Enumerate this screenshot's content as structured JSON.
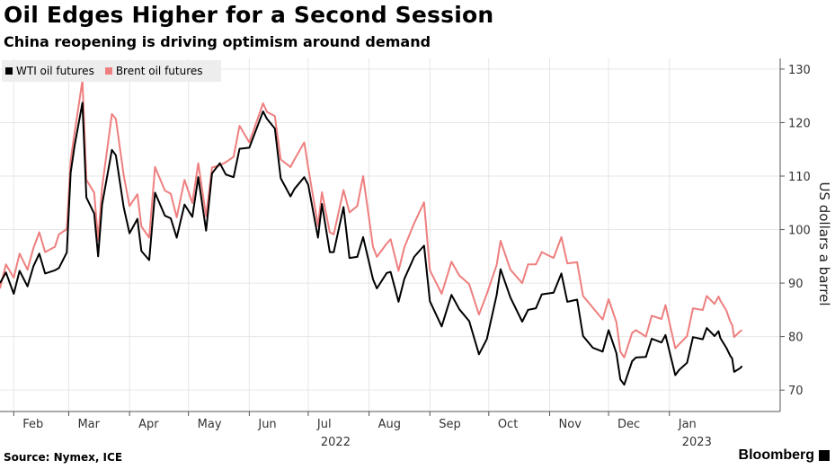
{
  "header": {
    "title": "Oil Edges Higher for a Second Session",
    "subtitle": "China reopening is driving optimism around demand"
  },
  "footer": {
    "source": "Source: Nymex, ICE",
    "brand": "Bloomberg"
  },
  "colors": {
    "wti": "#000000",
    "brent": "#ee7f7f",
    "grid": "#e6e6e6",
    "legend_bg": "#ededed"
  },
  "chart_data": {
    "type": "line",
    "title": "Oil Edges Higher for a Second Session",
    "subtitle": "China reopening is driving optimism around demand",
    "ylabel": "US dollars a barrel",
    "ylim": [
      66,
      132
    ],
    "yticks": [
      70,
      80,
      90,
      100,
      110,
      120,
      130
    ],
    "y_axis_side": "right",
    "xlim": [
      "2022-01-25",
      "2023-01-31"
    ],
    "xticks": [
      {
        "date": "2022-02-01",
        "label": "Feb"
      },
      {
        "date": "2022-03-01",
        "label": "Mar"
      },
      {
        "date": "2022-04-01",
        "label": "Apr"
      },
      {
        "date": "2022-05-01",
        "label": "May"
      },
      {
        "date": "2022-06-01",
        "label": "Jun"
      },
      {
        "date": "2022-07-01",
        "label": "Jul",
        "sublabel": "2022"
      },
      {
        "date": "2022-08-01",
        "label": "Aug"
      },
      {
        "date": "2022-09-01",
        "label": "Sep"
      },
      {
        "date": "2022-10-01",
        "label": "Oct"
      },
      {
        "date": "2022-11-01",
        "label": "Nov"
      },
      {
        "date": "2022-12-01",
        "label": "Dec"
      },
      {
        "date": "2023-01-01",
        "label": "Jan",
        "sublabel": "2023"
      }
    ],
    "grid": true,
    "legend_position": "top-left",
    "series": [
      {
        "name": "WTI oil futures",
        "color": "#000000",
        "points": [
          [
            "2022-01-25",
            90
          ],
          [
            "2022-01-28",
            92
          ],
          [
            "2022-02-01",
            88
          ],
          [
            "2022-02-04",
            92.3
          ],
          [
            "2022-02-08",
            89.4
          ],
          [
            "2022-02-11",
            93.1
          ],
          [
            "2022-02-14",
            95.5
          ],
          [
            "2022-02-17",
            91.8
          ],
          [
            "2022-02-22",
            92.4
          ],
          [
            "2022-02-24",
            92.8
          ],
          [
            "2022-02-28",
            95.7
          ],
          [
            "2022-03-02",
            110.6
          ],
          [
            "2022-03-04",
            115.7
          ],
          [
            "2022-03-08",
            123.7
          ],
          [
            "2022-03-10",
            106
          ],
          [
            "2022-03-14",
            103
          ],
          [
            "2022-03-16",
            95
          ],
          [
            "2022-03-18",
            104.7
          ],
          [
            "2022-03-23",
            114.9
          ],
          [
            "2022-03-25",
            113.9
          ],
          [
            "2022-03-29",
            104.2
          ],
          [
            "2022-04-01",
            99.3
          ],
          [
            "2022-04-05",
            102
          ],
          [
            "2022-04-07",
            96
          ],
          [
            "2022-04-11",
            94.3
          ],
          [
            "2022-04-14",
            106.9
          ],
          [
            "2022-04-19",
            102.6
          ],
          [
            "2022-04-22",
            102.1
          ],
          [
            "2022-04-25",
            98.5
          ],
          [
            "2022-04-29",
            104.7
          ],
          [
            "2022-05-03",
            102.4
          ],
          [
            "2022-05-06",
            109.8
          ],
          [
            "2022-05-10",
            99.8
          ],
          [
            "2022-05-13",
            110.5
          ],
          [
            "2022-05-17",
            112.4
          ],
          [
            "2022-05-20",
            110.3
          ],
          [
            "2022-05-24",
            109.8
          ],
          [
            "2022-05-27",
            115.1
          ],
          [
            "2022-06-01",
            115.3
          ],
          [
            "2022-06-08",
            122.1
          ],
          [
            "2022-06-10",
            120.7
          ],
          [
            "2022-06-14",
            118.9
          ],
          [
            "2022-06-17",
            109.6
          ],
          [
            "2022-06-22",
            106.2
          ],
          [
            "2022-06-24",
            107.6
          ],
          [
            "2022-06-29",
            109.8
          ],
          [
            "2022-07-01",
            108.4
          ],
          [
            "2022-07-06",
            98.5
          ],
          [
            "2022-07-08",
            104.8
          ],
          [
            "2022-07-12",
            95.8
          ],
          [
            "2022-07-14",
            95.8
          ],
          [
            "2022-07-19",
            104.2
          ],
          [
            "2022-07-22",
            94.7
          ],
          [
            "2022-07-26",
            94.9
          ],
          [
            "2022-07-29",
            98.6
          ],
          [
            "2022-08-03",
            90.7
          ],
          [
            "2022-08-05",
            89
          ],
          [
            "2022-08-10",
            91.9
          ],
          [
            "2022-08-12",
            92.1
          ],
          [
            "2022-08-16",
            86.5
          ],
          [
            "2022-08-19",
            90.8
          ],
          [
            "2022-08-24",
            94.9
          ],
          [
            "2022-08-29",
            97
          ],
          [
            "2022-09-01",
            86.6
          ],
          [
            "2022-09-07",
            81.9
          ],
          [
            "2022-09-12",
            87.8
          ],
          [
            "2022-09-16",
            85.1
          ],
          [
            "2022-09-21",
            82.9
          ],
          [
            "2022-09-26",
            76.7
          ],
          [
            "2022-09-30",
            79.5
          ],
          [
            "2022-10-05",
            87.8
          ],
          [
            "2022-10-07",
            92.6
          ],
          [
            "2022-10-12",
            87.3
          ],
          [
            "2022-10-18",
            82.8
          ],
          [
            "2022-10-21",
            85
          ],
          [
            "2022-10-25",
            85.3
          ],
          [
            "2022-10-28",
            87.9
          ],
          [
            "2022-11-03",
            88.2
          ],
          [
            "2022-11-07",
            91.8
          ],
          [
            "2022-11-10",
            86.5
          ],
          [
            "2022-11-15",
            86.9
          ],
          [
            "2022-11-18",
            80.1
          ],
          [
            "2022-11-23",
            77.9
          ],
          [
            "2022-11-28",
            77.2
          ],
          [
            "2022-12-01",
            81.2
          ],
          [
            "2022-12-05",
            76.9
          ],
          [
            "2022-12-07",
            72
          ],
          [
            "2022-12-09",
            71
          ],
          [
            "2022-12-13",
            75.4
          ],
          [
            "2022-12-15",
            76.1
          ],
          [
            "2022-12-20",
            76.2
          ],
          [
            "2022-12-23",
            79.6
          ],
          [
            "2022-12-28",
            78.9
          ],
          [
            "2022-12-30",
            80.3
          ],
          [
            "2023-01-04",
            72.8
          ],
          [
            "2023-01-06",
            73.8
          ],
          [
            "2023-01-10",
            75.1
          ],
          [
            "2023-01-13",
            79.9
          ],
          [
            "2023-01-18",
            79.5
          ],
          [
            "2023-01-20",
            81.6
          ],
          [
            "2023-01-24",
            80.1
          ],
          [
            "2023-01-26",
            81
          ],
          [
            "2023-01-27",
            79.7
          ],
          [
            "2023-01-30",
            77.9
          ],
          [
            "2023-02-01",
            76.4
          ],
          [
            "2023-02-02",
            75.9
          ],
          [
            "2023-02-03",
            73.4
          ],
          [
            "2023-02-06",
            74.1
          ],
          [
            "2023-02-07",
            74.5
          ]
        ]
      },
      {
        "name": "Brent oil futures",
        "color": "#ee7f7f",
        "points": [
          [
            "2022-01-25",
            89
          ],
          [
            "2022-01-28",
            93.5
          ],
          [
            "2022-02-01",
            91
          ],
          [
            "2022-02-04",
            95.5
          ],
          [
            "2022-02-08",
            92.5
          ],
          [
            "2022-02-11",
            96.5
          ],
          [
            "2022-02-14",
            99.5
          ],
          [
            "2022-02-17",
            95.8
          ],
          [
            "2022-02-22",
            96.8
          ],
          [
            "2022-02-24",
            99.1
          ],
          [
            "2022-02-28",
            100.1
          ],
          [
            "2022-03-02",
            112.9
          ],
          [
            "2022-03-04",
            118.1
          ],
          [
            "2022-03-08",
            127.9
          ],
          [
            "2022-03-10",
            109.3
          ],
          [
            "2022-03-14",
            106.9
          ],
          [
            "2022-03-16",
            98
          ],
          [
            "2022-03-18",
            107.9
          ],
          [
            "2022-03-23",
            121.6
          ],
          [
            "2022-03-25",
            120.7
          ],
          [
            "2022-03-29",
            110.2
          ],
          [
            "2022-04-01",
            104.4
          ],
          [
            "2022-04-05",
            106.6
          ],
          [
            "2022-04-07",
            100.6
          ],
          [
            "2022-04-11",
            98.5
          ],
          [
            "2022-04-14",
            111.7
          ],
          [
            "2022-04-19",
            107.3
          ],
          [
            "2022-04-22",
            106.7
          ],
          [
            "2022-04-25",
            102.3
          ],
          [
            "2022-04-29",
            109.3
          ],
          [
            "2022-05-03",
            104.97
          ],
          [
            "2022-05-06",
            112.4
          ],
          [
            "2022-05-10",
            102.5
          ],
          [
            "2022-05-13",
            111.6
          ],
          [
            "2022-05-17",
            112
          ],
          [
            "2022-05-20",
            112.6
          ],
          [
            "2022-05-24",
            113.6
          ],
          [
            "2022-05-27",
            119.4
          ],
          [
            "2022-06-01",
            116.3
          ],
          [
            "2022-06-08",
            123.6
          ],
          [
            "2022-06-10",
            122
          ],
          [
            "2022-06-14",
            121.2
          ],
          [
            "2022-06-17",
            113.1
          ],
          [
            "2022-06-22",
            111.7
          ],
          [
            "2022-06-24",
            113.1
          ],
          [
            "2022-06-29",
            116.3
          ],
          [
            "2022-07-01",
            111.6
          ],
          [
            "2022-07-06",
            100.7
          ],
          [
            "2022-07-08",
            107
          ],
          [
            "2022-07-12",
            99.5
          ],
          [
            "2022-07-14",
            99.1
          ],
          [
            "2022-07-19",
            107.4
          ],
          [
            "2022-07-22",
            103.2
          ],
          [
            "2022-07-26",
            104.4
          ],
          [
            "2022-07-29",
            110
          ],
          [
            "2022-08-03",
            96.8
          ],
          [
            "2022-08-05",
            94.9
          ],
          [
            "2022-08-10",
            97.4
          ],
          [
            "2022-08-12",
            98.2
          ],
          [
            "2022-08-16",
            92.3
          ],
          [
            "2022-08-19",
            96.7
          ],
          [
            "2022-08-24",
            101.2
          ],
          [
            "2022-08-29",
            105.1
          ],
          [
            "2022-09-01",
            92.4
          ],
          [
            "2022-09-07",
            88
          ],
          [
            "2022-09-12",
            94
          ],
          [
            "2022-09-16",
            91.4
          ],
          [
            "2022-09-21",
            89.8
          ],
          [
            "2022-09-26",
            84.1
          ],
          [
            "2022-09-30",
            87.96
          ],
          [
            "2022-10-05",
            93.4
          ],
          [
            "2022-10-07",
            97.9
          ],
          [
            "2022-10-12",
            92.5
          ],
          [
            "2022-10-18",
            90
          ],
          [
            "2022-10-21",
            93.5
          ],
          [
            "2022-10-25",
            93.5
          ],
          [
            "2022-10-28",
            95.8
          ],
          [
            "2022-11-03",
            94.7
          ],
          [
            "2022-11-07",
            98.6
          ],
          [
            "2022-11-10",
            93.7
          ],
          [
            "2022-11-15",
            93.9
          ],
          [
            "2022-11-18",
            87.6
          ],
          [
            "2022-11-23",
            85.4
          ],
          [
            "2022-11-28",
            83.2
          ],
          [
            "2022-12-01",
            87
          ],
          [
            "2022-12-05",
            82.7
          ],
          [
            "2022-12-07",
            77.2
          ],
          [
            "2022-12-09",
            76.1
          ],
          [
            "2022-12-13",
            80.7
          ],
          [
            "2022-12-15",
            81.2
          ],
          [
            "2022-12-20",
            80
          ],
          [
            "2022-12-23",
            83.9
          ],
          [
            "2022-12-28",
            83.3
          ],
          [
            "2022-12-30",
            85.9
          ],
          [
            "2023-01-04",
            77.8
          ],
          [
            "2023-01-06",
            78.6
          ],
          [
            "2023-01-10",
            80.1
          ],
          [
            "2023-01-13",
            85.3
          ],
          [
            "2023-01-18",
            84.98
          ],
          [
            "2023-01-20",
            87.6
          ],
          [
            "2023-01-24",
            86.1
          ],
          [
            "2023-01-26",
            87.5
          ],
          [
            "2023-01-27",
            86.7
          ],
          [
            "2023-01-30",
            84.9
          ],
          [
            "2023-02-01",
            82.8
          ],
          [
            "2023-02-02",
            82.2
          ],
          [
            "2023-02-03",
            79.9
          ],
          [
            "2023-02-06",
            80.99
          ],
          [
            "2023-02-07",
            81.2
          ]
        ]
      }
    ]
  }
}
